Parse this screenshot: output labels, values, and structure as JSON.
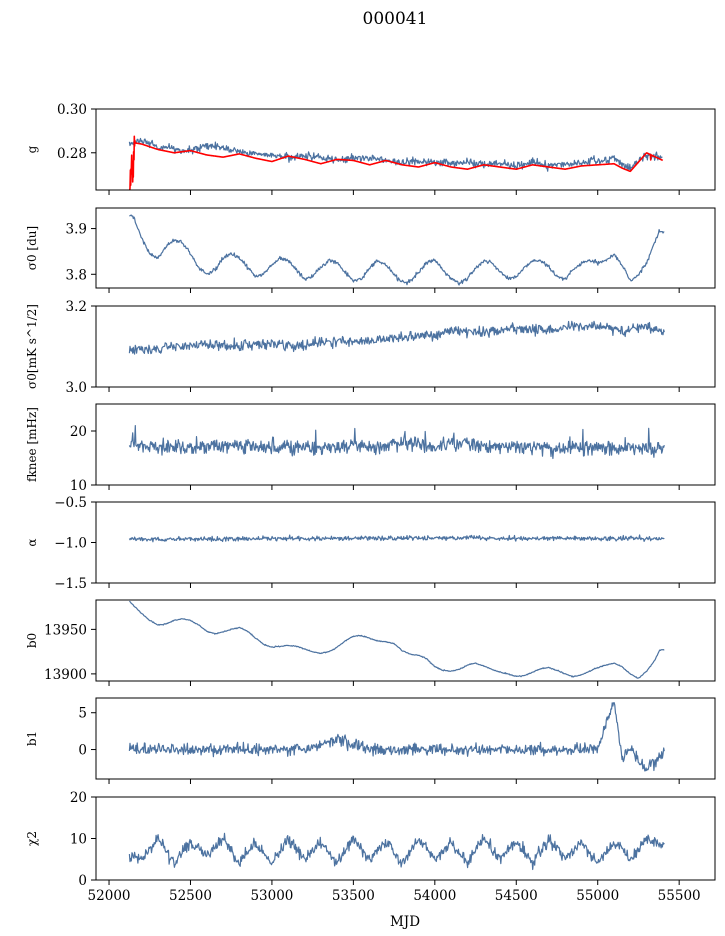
{
  "figure": {
    "title": "000041",
    "xlabel": "MJD",
    "xlim": [
      51920,
      55720
    ],
    "xticks": [
      52000,
      52500,
      53000,
      53500,
      54000,
      54500,
      55000,
      55500
    ],
    "x_range": [
      52125,
      55410
    ],
    "colors": {
      "series": "#4c72a0",
      "fit": "#ff0000"
    }
  },
  "chart_data": [
    {
      "type": "line",
      "ylabel": "g",
      "ylim": [
        0.263,
        0.3
      ],
      "yticks": [
        0.28,
        0.3
      ],
      "ytick_labels": [
        "0.28",
        "0.30"
      ],
      "series": [
        {
          "color": "#4c72a0",
          "x": [
            52125,
            52200,
            52300,
            52400,
            52500,
            52600,
            52700,
            52800,
            52900,
            53000,
            53100,
            53200,
            53300,
            53400,
            53500,
            53600,
            53700,
            53800,
            53900,
            54000,
            54100,
            54200,
            54300,
            54400,
            54500,
            54600,
            54700,
            54800,
            54900,
            55000,
            55100,
            55150,
            55200,
            55300,
            55400
          ],
          "y": [
            0.284,
            0.2855,
            0.2825,
            0.2815,
            0.281,
            0.2835,
            0.282,
            0.2805,
            0.2795,
            0.279,
            0.278,
            0.2785,
            0.278,
            0.2765,
            0.2775,
            0.2775,
            0.2765,
            0.2755,
            0.276,
            0.2755,
            0.275,
            0.276,
            0.2745,
            0.2755,
            0.274,
            0.2755,
            0.274,
            0.2745,
            0.275,
            0.2765,
            0.2775,
            0.2745,
            0.273,
            0.279,
            0.2775
          ]
        },
        {
          "color": "#ff0000",
          "x": [
            52125,
            52160,
            52200,
            52300,
            52400,
            52500,
            52600,
            52700,
            52800,
            52900,
            53000,
            53100,
            53200,
            53300,
            53400,
            53500,
            53600,
            53700,
            53800,
            53900,
            54000,
            54100,
            54200,
            54300,
            54400,
            54500,
            54600,
            54700,
            54800,
            54900,
            55000,
            55100,
            55150,
            55200,
            55300,
            55400
          ],
          "y": [
            0.264,
            0.2845,
            0.284,
            0.2815,
            0.28,
            0.281,
            0.279,
            0.278,
            0.2795,
            0.2775,
            0.276,
            0.2785,
            0.277,
            0.275,
            0.277,
            0.2765,
            0.2745,
            0.2765,
            0.2745,
            0.2735,
            0.2755,
            0.2735,
            0.2725,
            0.2745,
            0.2735,
            0.2725,
            0.2745,
            0.2735,
            0.2725,
            0.274,
            0.2745,
            0.275,
            0.273,
            0.2715,
            0.28,
            0.2765
          ]
        }
      ]
    },
    {
      "type": "line",
      "ylabel": "σ0 [du]",
      "ylim": [
        3.77,
        3.945
      ],
      "yticks": [
        3.8,
        3.9
      ],
      "ytick_labels": [
        "3.8",
        "3.9"
      ],
      "series": [
        {
          "color": "#4c72a0",
          "x": [
            52125,
            52150,
            52200,
            52250,
            52300,
            52350,
            52400,
            52450,
            52500,
            52550,
            52600,
            52650,
            52700,
            52750,
            52800,
            52850,
            52900,
            52950,
            53000,
            53050,
            53100,
            53150,
            53200,
            53250,
            53300,
            53350,
            53400,
            53450,
            53500,
            53550,
            53600,
            53650,
            53700,
            53750,
            53800,
            53850,
            53900,
            53950,
            54000,
            54050,
            54100,
            54150,
            54200,
            54250,
            54300,
            54350,
            54400,
            54450,
            54500,
            54550,
            54600,
            54650,
            54700,
            54750,
            54800,
            54850,
            54900,
            54950,
            55000,
            55050,
            55100,
            55150,
            55200,
            55250,
            55300,
            55350,
            55380,
            55410
          ],
          "y": [
            3.93,
            3.925,
            3.88,
            3.845,
            3.835,
            3.86,
            3.875,
            3.87,
            3.845,
            3.815,
            3.8,
            3.81,
            3.835,
            3.845,
            3.835,
            3.815,
            3.795,
            3.8,
            3.82,
            3.835,
            3.83,
            3.81,
            3.79,
            3.795,
            3.815,
            3.83,
            3.825,
            3.805,
            3.785,
            3.79,
            3.815,
            3.83,
            3.82,
            3.8,
            3.782,
            3.785,
            3.805,
            3.825,
            3.83,
            3.81,
            3.79,
            3.78,
            3.79,
            3.815,
            3.83,
            3.825,
            3.805,
            3.79,
            3.795,
            3.815,
            3.83,
            3.83,
            3.815,
            3.795,
            3.79,
            3.81,
            3.825,
            3.83,
            3.825,
            3.83,
            3.845,
            3.82,
            3.785,
            3.8,
            3.825,
            3.87,
            3.895,
            3.89
          ]
        }
      ]
    },
    {
      "type": "line",
      "ylabel": "σ0[mK s^1/2]",
      "ylim": [
        3.0,
        3.2
      ],
      "yticks": [
        3.0,
        3.2
      ],
      "ytick_labels": [
        "3.0",
        "3.2"
      ],
      "series": [
        {
          "color": "#4c72a0",
          "x": [
            52125,
            52250,
            52400,
            52550,
            52700,
            52850,
            53000,
            53150,
            53300,
            53450,
            53600,
            53750,
            53900,
            54000,
            54100,
            54250,
            54400,
            54550,
            54700,
            54850,
            55000,
            55150,
            55300,
            55410
          ],
          "y": [
            3.095,
            3.09,
            3.1,
            3.105,
            3.1,
            3.105,
            3.11,
            3.1,
            3.11,
            3.115,
            3.115,
            3.12,
            3.13,
            3.125,
            3.14,
            3.135,
            3.14,
            3.145,
            3.14,
            3.15,
            3.15,
            3.14,
            3.15,
            3.135
          ]
        }
      ]
    },
    {
      "type": "line",
      "ylabel": "fknee [mHz]",
      "ylim": [
        10,
        25
      ],
      "yticks": [
        10,
        20
      ],
      "ytick_labels": [
        "10",
        "20"
      ],
      "series": [
        {
          "color": "#4c72a0",
          "x": [
            52125,
            52300,
            52500,
            52700,
            52900,
            53100,
            53300,
            53500,
            53700,
            53800,
            54000,
            54100,
            54300,
            54500,
            54700,
            54900,
            55100,
            55300,
            55410
          ],
          "y": [
            18,
            17,
            17,
            17.5,
            17,
            17,
            17,
            17,
            17,
            18,
            17,
            18,
            17,
            17,
            17,
            17,
            17,
            17,
            17
          ]
        }
      ]
    },
    {
      "type": "line",
      "ylabel": "α",
      "ylim": [
        -1.5,
        -0.5
      ],
      "yticks": [
        -1.5,
        -1.0,
        -0.5
      ],
      "ytick_labels": [
        "−1.5",
        "−1.0",
        "−0.5"
      ],
      "series": [
        {
          "color": "#4c72a0",
          "x": [
            52125,
            52500,
            53000,
            53500,
            54000,
            54500,
            55000,
            55410
          ],
          "y": [
            -0.96,
            -0.96,
            -0.95,
            -0.95,
            -0.94,
            -0.95,
            -0.95,
            -0.95
          ]
        }
      ]
    },
    {
      "type": "line",
      "ylabel": "b0",
      "ylim": [
        13892,
        13983
      ],
      "yticks": [
        13900,
        13950
      ],
      "ytick_labels": [
        "13900",
        "13950"
      ],
      "series": [
        {
          "color": "#4c72a0",
          "x": [
            52125,
            52160,
            52200,
            52250,
            52300,
            52350,
            52400,
            52450,
            52500,
            52550,
            52600,
            52650,
            52700,
            52750,
            52800,
            52850,
            52900,
            52950,
            53000,
            53050,
            53100,
            53150,
            53200,
            53250,
            53300,
            53350,
            53400,
            53450,
            53500,
            53550,
            53600,
            53650,
            53700,
            53750,
            53800,
            53850,
            53900,
            53950,
            54000,
            54050,
            54100,
            54150,
            54200,
            54250,
            54300,
            54350,
            54400,
            54450,
            54500,
            54550,
            54600,
            54650,
            54700,
            54750,
            54800,
            54850,
            54900,
            54950,
            55000,
            55050,
            55100,
            55150,
            55200,
            55250,
            55300,
            55350,
            55380,
            55410
          ],
          "y": [
            13982,
            13975,
            13968,
            13960,
            13955,
            13956,
            13960,
            13962,
            13960,
            13955,
            13948,
            13945,
            13947,
            13950,
            13952,
            13948,
            13940,
            13933,
            13930,
            13931,
            13932,
            13931,
            13928,
            13925,
            13923,
            13925,
            13930,
            13937,
            13942,
            13943,
            13940,
            13937,
            13936,
            13934,
            13926,
            13922,
            13921,
            13917,
            13908,
            13904,
            13903,
            13905,
            13910,
            13912,
            13909,
            13905,
            13902,
            13900,
            13897,
            13898,
            13902,
            13906,
            13907,
            13904,
            13900,
            13897,
            13899,
            13903,
            13907,
            13910,
            13912,
            13908,
            13900,
            13895,
            13903,
            13915,
            13927,
            13927
          ]
        }
      ]
    },
    {
      "type": "line",
      "ylabel": "b1",
      "ylim": [
        -4,
        7
      ],
      "yticks": [
        0,
        5
      ],
      "ytick_labels": [
        "0",
        "5"
      ],
      "series": [
        {
          "color": "#4c72a0",
          "x": [
            52125,
            52400,
            52800,
            53200,
            53400,
            53600,
            54000,
            54400,
            54800,
            55000,
            55100,
            55150,
            55200,
            55300,
            55410
          ],
          "y": [
            0,
            0,
            0,
            0,
            1.5,
            0,
            0,
            0,
            0,
            0,
            6.5,
            -1.5,
            0,
            -3,
            0
          ]
        }
      ]
    },
    {
      "type": "line",
      "ylabel": "χ2",
      "ylim": [
        0,
        20
      ],
      "yticks": [
        0,
        10,
        20
      ],
      "ytick_labels": [
        "0",
        "10",
        "20"
      ],
      "series": [
        {
          "color": "#4c72a0",
          "x": [
            52125,
            52200,
            52300,
            52400,
            52500,
            52600,
            52700,
            52800,
            52900,
            53000,
            53100,
            53200,
            53300,
            53400,
            53500,
            53600,
            53700,
            53800,
            53900,
            54000,
            54100,
            54200,
            54300,
            54400,
            54500,
            54600,
            54700,
            54800,
            54900,
            55000,
            55100,
            55200,
            55300,
            55410
          ],
          "y": [
            6,
            5,
            10,
            4,
            9,
            6,
            10,
            4,
            9,
            4,
            10,
            5,
            9,
            4,
            10,
            5,
            9,
            4,
            10,
            5,
            9,
            4,
            10,
            5,
            9,
            4,
            10,
            5,
            9,
            4,
            9,
            5,
            10,
            8
          ]
        }
      ]
    }
  ]
}
